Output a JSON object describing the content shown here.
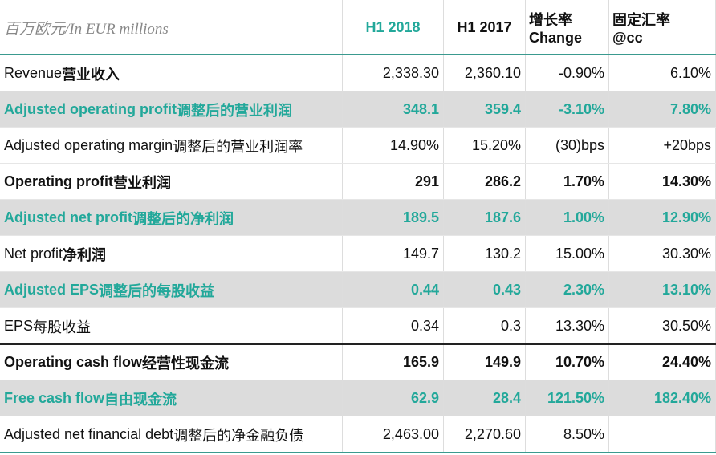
{
  "header": {
    "unit": "百万欧元/In EUR millions",
    "columns": [
      [
        "H1 2018"
      ],
      [
        "H1 2017"
      ],
      [
        "增长率",
        "Change"
      ],
      [
        "固定汇率",
        "@cc"
      ]
    ]
  },
  "table": {
    "rows": [
      {
        "style": "normal",
        "label": {
          "en": "Revenue",
          "zh": "营业收入"
        },
        "cells": [
          "2,338.30",
          "2,360.10",
          "-0.90%",
          "6.10%"
        ]
      },
      {
        "style": "highlight",
        "label": {
          "en": "Adjusted operating profit",
          "zh": "调整后的营业利润"
        },
        "cells": [
          "348.1",
          "359.4",
          "-3.10%",
          "7.80%"
        ]
      },
      {
        "style": "normal",
        "label": {
          "en": "Adjusted operating margin",
          "zh": "调整后的营业利润率"
        },
        "cells": [
          "14.90%",
          "15.20%",
          "(30)bps",
          "+20bps"
        ]
      },
      {
        "style": "bold",
        "label": {
          "en": "Operating profit",
          "zh": "营业利润"
        },
        "cells": [
          "291",
          "286.2",
          "1.70%",
          "14.30%"
        ]
      },
      {
        "style": "highlight",
        "label": {
          "en": "Adjusted net profit",
          "zh": "调整后的净利润"
        },
        "cells": [
          "189.5",
          "187.6",
          "1.00%",
          "12.90%"
        ]
      },
      {
        "style": "normal",
        "label": {
          "en": "Net profit",
          "zh": "净利润"
        },
        "cells": [
          "149.7",
          "130.2",
          "15.00%",
          "30.30%"
        ]
      },
      {
        "style": "highlight",
        "label": {
          "en": "Adjusted EPS",
          "zh": "调整后的每股收益"
        },
        "cells": [
          "0.44",
          "0.43",
          "2.30%",
          "13.10%"
        ]
      },
      {
        "style": "normal",
        "label": {
          "en": "EPS",
          "zh": "每股收益"
        },
        "cells": [
          "0.34",
          "0.3",
          "13.30%",
          "30.50%"
        ]
      },
      {
        "style": "bold",
        "label": {
          "en": "Operating cash flow",
          "zh": "经营性现金流"
        },
        "cells": [
          "165.9",
          "149.9",
          "10.70%",
          "24.40%"
        ]
      },
      {
        "style": "highlight",
        "label": {
          "en": "Free cash flow",
          "zh": "自由现金流"
        },
        "cells": [
          "62.9",
          "28.4",
          "121.50%",
          "182.40%"
        ]
      },
      {
        "style": "normal",
        "label": {
          "en": "Adjusted net financial debt",
          "zh": "调整后的净金融负债"
        },
        "cells": [
          "2,463.00",
          "2,270.60",
          "8.50%"
        ]
      }
    ]
  }
}
